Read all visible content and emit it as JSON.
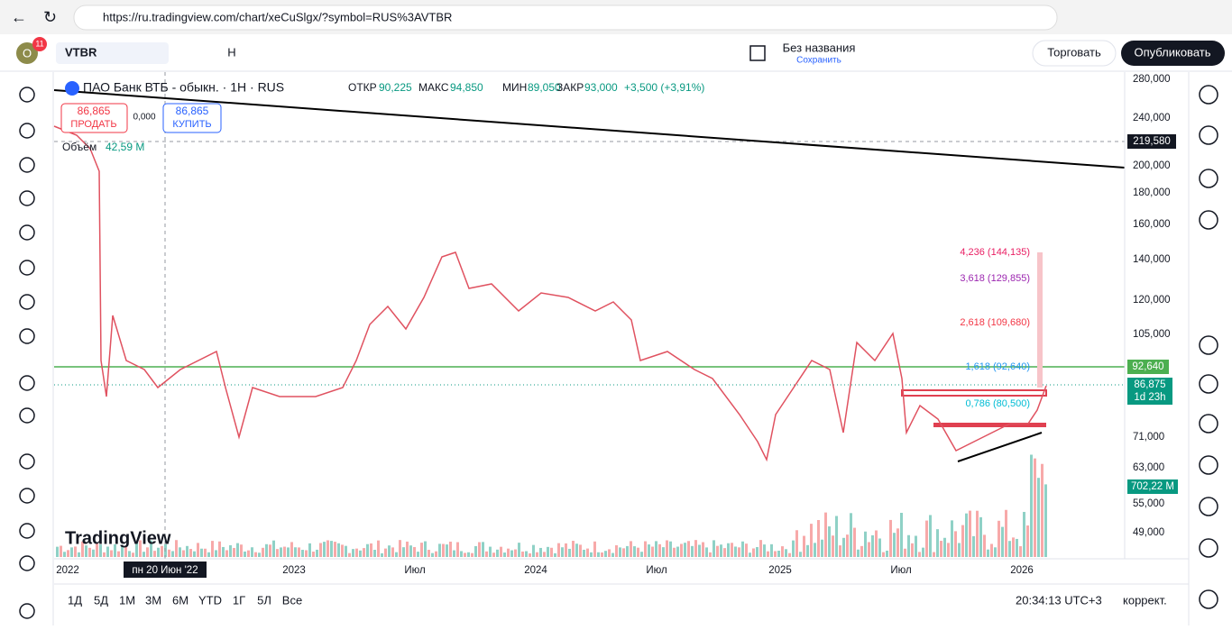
{
  "browser": {
    "url": "https://ru.tradingview.com/chart/xeCuSlgx/?symbol=RUS%3AVTBR"
  },
  "toolbar": {
    "avatar": "O",
    "badge": "11",
    "symbol": "VTBR",
    "interval": "H",
    "layout_name": "Без названия",
    "save": "Сохранить",
    "trade": "Торговать",
    "publish": "Опубликовать"
  },
  "legend": {
    "title": "ПАО Банк ВТБ - обыкн. · 1Н · RUS",
    "open_label": "ОТКР",
    "open": "90,225",
    "high_label": "МАКС",
    "high": "94,850",
    "low_label": "МИН",
    "low": "89,050",
    "close_label": "ЗАКР",
    "close": "93,000",
    "change": "+3,500 (+3,91%)"
  },
  "order": {
    "sell_price": "86,865",
    "sell": "ПРОДАТЬ",
    "spread": "0,000",
    "buy_price": "86,865",
    "buy": "КУПИТЬ"
  },
  "volume": {
    "label": "Объём",
    "value": "42,59 M"
  },
  "price_axis": [
    "280,000",
    "240,000",
    "200,000",
    "180,000",
    "160,000",
    "140,000",
    "120,000",
    "105,000",
    "71,000",
    "63,000",
    "55,000",
    "49,000"
  ],
  "price_tags": {
    "crosshair": "219,580",
    "level": "92,640",
    "last": "86,875",
    "countdown": "1d 23h",
    "volume": "702,22 M"
  },
  "fib_labels": [
    "4,236 (144,135)",
    "3,618 (129,855)",
    "2,618 (109,680)",
    "1,618 (92,640)",
    "0,786 (80,500)"
  ],
  "time_axis": [
    "2022",
    "2023",
    "Июл",
    "2024",
    "Июл",
    "2025",
    "Июл",
    "2026"
  ],
  "crosshair_date": "пн 20 Июн '22",
  "watermark": "TradingView",
  "ranges": [
    "1Д",
    "5Д",
    "1М",
    "3М",
    "6М",
    "YTD",
    "1Г",
    "5Л",
    "Все"
  ],
  "clock": "20:34:13 UTC+3",
  "adjust": "коррект."
}
